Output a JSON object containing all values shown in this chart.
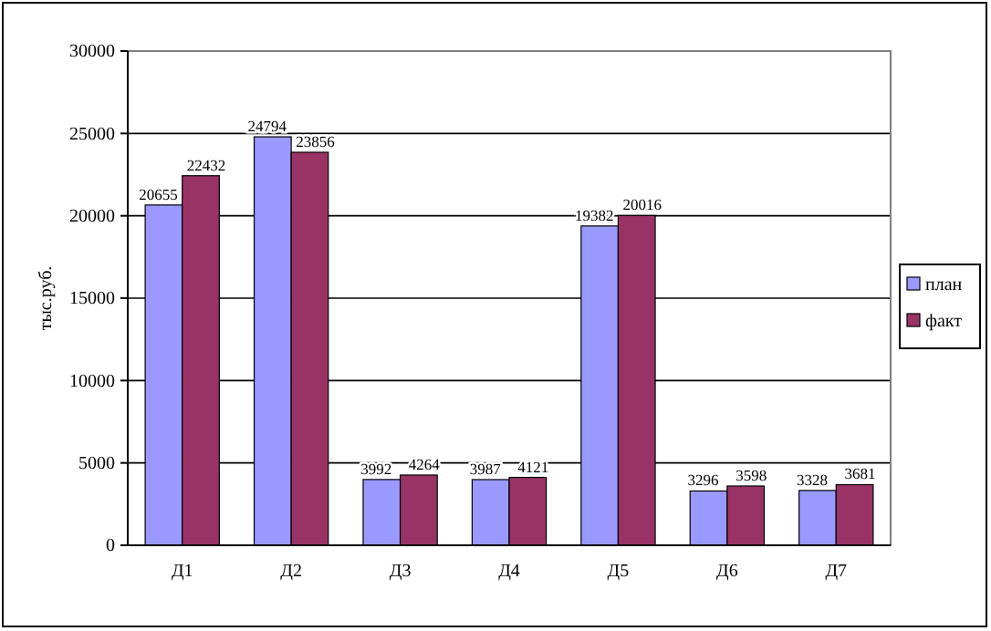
{
  "chart_data": {
    "type": "bar",
    "ylabel": "тыс.руб.",
    "categories": [
      "Д1",
      "Д2",
      "Д3",
      "Д4",
      "Д5",
      "Д6",
      "Д7"
    ],
    "series": [
      {
        "name": "план",
        "color": "#9999ff",
        "values": [
          20655,
          24794,
          3992,
          3987,
          19382,
          3296,
          3328
        ]
      },
      {
        "name": "факт",
        "color": "#993366",
        "values": [
          22432,
          23856,
          4264,
          4121,
          20016,
          3598,
          3681
        ]
      }
    ],
    "ylim": [
      0,
      30000
    ],
    "yticks": [
      0,
      5000,
      10000,
      15000,
      20000,
      25000,
      30000
    ],
    "grid": "y",
    "legend": "right",
    "data_labels": true
  }
}
